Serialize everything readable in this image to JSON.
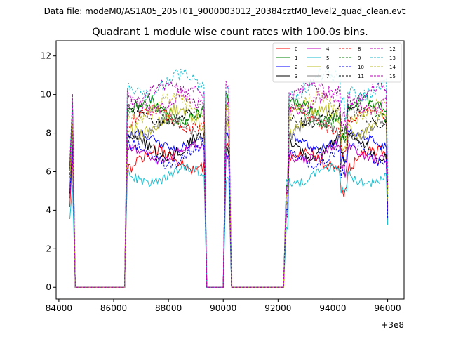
{
  "header": {
    "suptitle": "Data file: modeM0/AS1A05_205T01_9000003012_20384cztM0_level2_quad_clean.evt"
  },
  "chart_data": {
    "type": "line",
    "title": "Quadrant 1 module wise count rates with 100.0s bins.",
    "xlabel": "",
    "ylabel": "",
    "offset_label": "+3e8",
    "xlim": [
      83900,
      96600
    ],
    "ylim": [
      -0.61,
      12.79
    ],
    "xticks": [
      84000,
      86000,
      88000,
      90000,
      92000,
      94000,
      96000
    ],
    "xtick_labels": [
      "84000",
      "86000",
      "88000",
      "90000",
      "92000",
      "94000",
      "96000"
    ],
    "yticks": [
      0,
      2,
      4,
      6,
      8,
      10,
      12
    ],
    "ytick_labels": [
      "0",
      "2",
      "4",
      "6",
      "8",
      "10",
      "12"
    ],
    "grid": false,
    "legend_location": "top-right",
    "segments": [
      {
        "start": 84400,
        "end": 84500,
        "on": true
      },
      {
        "start": 84500,
        "end": 86400,
        "on": false
      },
      {
        "start": 86500,
        "end": 89300,
        "on": true
      },
      {
        "start": 89400,
        "end": 90000,
        "on": false
      },
      {
        "start": 90100,
        "end": 90200,
        "on": true
      },
      {
        "start": 90300,
        "end": 92300,
        "on": false
      },
      {
        "start": 92300,
        "end": 96000,
        "on": true
      }
    ],
    "series": [
      {
        "name": "0",
        "color": "#ff0000",
        "dash": "solid",
        "level": 6.6,
        "amp": 0.5,
        "phase": 0.3
      },
      {
        "name": "1",
        "color": "#008000",
        "dash": "solid",
        "level": 9.2,
        "amp": 0.5,
        "phase": 1.1
      },
      {
        "name": "2",
        "color": "#0000ff",
        "dash": "solid",
        "level": 7.6,
        "amp": 0.4,
        "phase": 2.0
      },
      {
        "name": "3",
        "color": "#000000",
        "dash": "solid",
        "level": 7.3,
        "amp": 0.5,
        "phase": 2.7
      },
      {
        "name": "4",
        "color": "#bf00bf",
        "dash": "solid",
        "level": 7.0,
        "amp": 0.4,
        "phase": 3.3
      },
      {
        "name": "5",
        "color": "#17becf",
        "dash": "solid",
        "level": 5.8,
        "amp": 0.4,
        "phase": 4.1
      },
      {
        "name": "6",
        "color": "#bcbd22",
        "dash": "solid",
        "level": 8.6,
        "amp": 0.6,
        "phase": 4.8
      },
      {
        "name": "7",
        "color": "#7f7f7f",
        "dash": "solid",
        "level": 8.2,
        "amp": 0.5,
        "phase": 5.5
      },
      {
        "name": "8",
        "color": "#ff0000",
        "dash": "dashed",
        "level": 8.7,
        "amp": 0.5,
        "phase": 0.7
      },
      {
        "name": "9",
        "color": "#008000",
        "dash": "dashed",
        "level": 9.0,
        "amp": 0.5,
        "phase": 1.6
      },
      {
        "name": "10",
        "color": "#0000ff",
        "dash": "dashed",
        "level": 6.9,
        "amp": 0.5,
        "phase": 2.4
      },
      {
        "name": "11",
        "color": "#000000",
        "dash": "dashed",
        "level": 8.9,
        "amp": 0.4,
        "phase": 3.0
      },
      {
        "name": "12",
        "color": "#bf00bf",
        "dash": "dashed",
        "level": 9.7,
        "amp": 0.5,
        "phase": 3.8
      },
      {
        "name": "13",
        "color": "#17becf",
        "dash": "dashed",
        "level": 10.5,
        "amp": 0.6,
        "phase": 4.5
      },
      {
        "name": "14",
        "color": "#bcbd22",
        "dash": "dashed",
        "level": 9.3,
        "amp": 0.6,
        "phase": 5.2
      },
      {
        "name": "15",
        "color": "#bf00bf",
        "dash": "dashed",
        "level": 10.0,
        "amp": 0.5,
        "phase": 5.9
      }
    ]
  }
}
